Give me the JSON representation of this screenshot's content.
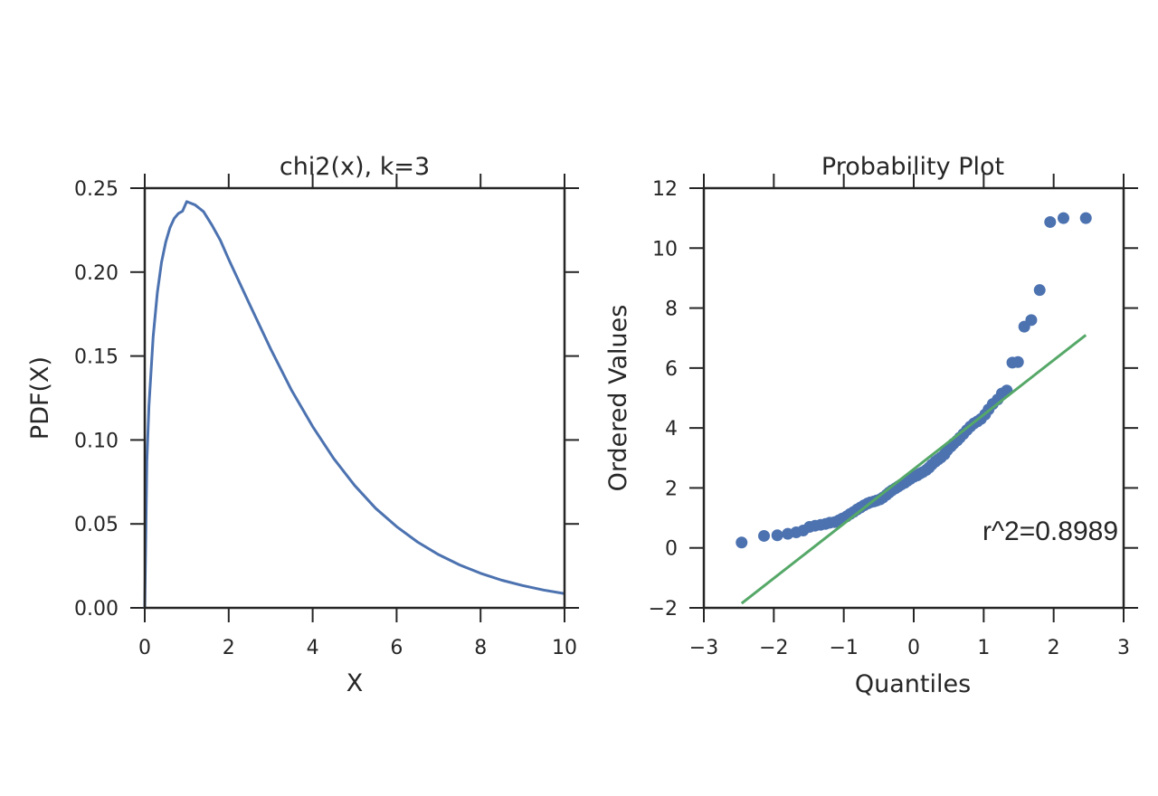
{
  "chart_data": [
    {
      "type": "line",
      "title": "chi2(x), k=3",
      "xlabel": "X",
      "ylabel": "PDF(X)",
      "xlim": [
        0,
        10
      ],
      "ylim": [
        0,
        0.25
      ],
      "xticks": [
        "0",
        "2",
        "4",
        "6",
        "8",
        "10"
      ],
      "yticks": [
        "0.00",
        "0.05",
        "0.10",
        "0.15",
        "0.20",
        "0.25"
      ],
      "grid": false,
      "series": [
        {
          "color": "#4c72b0",
          "function": "chi-square pdf, k=3",
          "x": [
            0,
            0.05,
            0.1,
            0.2,
            0.3,
            0.4,
            0.5,
            0.6,
            0.7,
            0.8,
            0.9,
            1.0,
            1.2,
            1.4,
            1.6,
            1.8,
            2.0,
            2.5,
            3.0,
            3.5,
            4.0,
            4.5,
            5.0,
            5.5,
            6.0,
            6.5,
            7.0,
            7.5,
            8.0,
            8.5,
            9.0,
            9.5,
            10.0
          ],
          "y": [
            0,
            0.0872,
            0.1203,
            0.1614,
            0.1878,
            0.2059,
            0.2179,
            0.2264,
            0.2319,
            0.2349,
            0.2363,
            0.242,
            0.24,
            0.236,
            0.228,
            0.219,
            0.2076,
            0.1807,
            0.1542,
            0.1295,
            0.108,
            0.089,
            0.0729,
            0.0593,
            0.0484,
            0.0392,
            0.0317,
            0.0256,
            0.0206,
            0.0165,
            0.0133,
            0.0106,
            0.0085
          ]
        }
      ]
    },
    {
      "type": "scatter",
      "title": "Probability Plot",
      "xlabel": "Quantiles",
      "ylabel": "Ordered Values",
      "xlim": [
        -3,
        3
      ],
      "ylim": [
        -2,
        12
      ],
      "xticks": [
        "−3",
        "−2",
        "−1",
        "0",
        "1",
        "2",
        "3"
      ],
      "yticks": [
        "−2",
        "0",
        "2",
        "4",
        "6",
        "8",
        "10",
        "12"
      ],
      "grid": false,
      "annotation": "r^2=0.8989",
      "series": [
        {
          "kind": "points",
          "color": "#4c72b0",
          "x": [
            -2.46,
            -2.14,
            -1.95,
            -1.8,
            -1.68,
            -1.58,
            -1.49,
            -1.41,
            -1.33,
            -1.26,
            -1.2,
            -1.13,
            -1.07,
            -1.02,
            -0.96,
            -0.91,
            -0.86,
            -0.81,
            -0.76,
            -0.71,
            -0.66,
            -0.62,
            -0.57,
            -0.53,
            -0.48,
            -0.44,
            -0.39,
            -0.35,
            -0.31,
            -0.26,
            -0.22,
            -0.18,
            -0.13,
            -0.09,
            -0.05,
            0.0,
            0.05,
            0.09,
            0.13,
            0.18,
            0.22,
            0.26,
            0.31,
            0.35,
            0.39,
            0.44,
            0.48,
            0.53,
            0.57,
            0.62,
            0.66,
            0.71,
            0.76,
            0.81,
            0.86,
            0.91,
            0.96,
            1.02,
            1.07,
            1.13,
            1.2,
            1.26,
            1.33,
            1.41,
            1.49,
            1.58,
            1.68,
            1.8,
            1.95,
            2.14,
            2.46
          ],
          "y": [
            0.18,
            0.4,
            0.42,
            0.47,
            0.52,
            0.58,
            0.7,
            0.74,
            0.77,
            0.8,
            0.84,
            0.86,
            0.92,
            0.98,
            1.05,
            1.13,
            1.2,
            1.28,
            1.35,
            1.42,
            1.48,
            1.52,
            1.55,
            1.58,
            1.62,
            1.68,
            1.77,
            1.85,
            1.92,
            1.99,
            2.05,
            2.11,
            2.17,
            2.24,
            2.3,
            2.37,
            2.42,
            2.48,
            2.53,
            2.6,
            2.68,
            2.78,
            2.88,
            2.95,
            3.02,
            3.12,
            3.26,
            3.38,
            3.48,
            3.58,
            3.68,
            3.8,
            3.93,
            4.05,
            4.15,
            4.22,
            4.3,
            4.45,
            4.62,
            4.8,
            4.95,
            5.15,
            5.25,
            6.18,
            6.2,
            7.38,
            7.6,
            8.6,
            10.87,
            11.0,
            11.0
          ]
        },
        {
          "kind": "fit-line",
          "color": "#55a868",
          "x": [
            -2.46,
            2.46
          ],
          "y": [
            -1.85,
            7.1
          ]
        }
      ]
    }
  ]
}
